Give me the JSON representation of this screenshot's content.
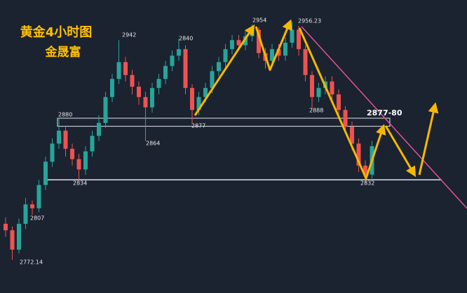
{
  "chart_data": {
    "type": "candlestick",
    "title": "黄金4小时图",
    "subtitle": "金晟富",
    "ylim": [
      2746.5,
      2973
    ],
    "up_color": "#26a69a",
    "down_color": "#ef5350",
    "open": [
      2800,
      2795,
      2780,
      2800,
      2815,
      2812,
      2830,
      2848,
      2862,
      2872,
      2858,
      2850,
      2842,
      2856,
      2868,
      2878,
      2898,
      2912,
      2925,
      2915,
      2906,
      2898,
      2890,
      2905,
      2912,
      2922,
      2930,
      2935,
      2905,
      2888,
      2898,
      2905,
      2918,
      2925,
      2935,
      2942,
      2938,
      2945,
      2950,
      2932,
      2926,
      2935,
      2930,
      2940,
      2950,
      2935,
      2915,
      2898,
      2905,
      2910,
      2900,
      2888,
      2875,
      2862,
      2845,
      2838
    ],
    "high": [
      2805,
      2798,
      2804,
      2820,
      2818,
      2834,
      2852,
      2866,
      2882,
      2876,
      2862,
      2854,
      2860,
      2872,
      2884,
      2902,
      2916,
      2942,
      2929,
      2919,
      2910,
      2902,
      2909,
      2916,
      2926,
      2934,
      2943,
      2938,
      2908,
      2902,
      2909,
      2922,
      2929,
      2939,
      2946,
      2946,
      2949,
      2954,
      2952,
      2936,
      2939,
      2939,
      2944,
      2956.23,
      2953,
      2938,
      2918,
      2909,
      2914,
      2914,
      2904,
      2891,
      2879,
      2866,
      2849,
      2864
    ],
    "low": [
      2790,
      2772.14,
      2777,
      2796,
      2807,
      2809,
      2826,
      2844,
      2858,
      2852,
      2845,
      2834,
      2838,
      2852,
      2864,
      2874,
      2894,
      2908,
      2910,
      2900,
      2892,
      2864,
      2886,
      2900,
      2908,
      2918,
      2926,
      2900,
      2877,
      2884,
      2894,
      2901,
      2914,
      2921,
      2931,
      2934,
      2934,
      2941,
      2928,
      2920,
      2922,
      2926,
      2926,
      2936,
      2930,
      2910,
      2888,
      2894,
      2900,
      2895,
      2883,
      2870,
      2857,
      2840,
      2832,
      2835
    ],
    "close": [
      2795,
      2780,
      2800,
      2815,
      2812,
      2830,
      2848,
      2862,
      2872,
      2858,
      2850,
      2842,
      2856,
      2868,
      2878,
      2898,
      2912,
      2925,
      2915,
      2906,
      2898,
      2890,
      2905,
      2912,
      2922,
      2930,
      2935,
      2905,
      2888,
      2898,
      2905,
      2918,
      2925,
      2935,
      2942,
      2938,
      2945,
      2950,
      2932,
      2926,
      2935,
      2930,
      2940,
      2950,
      2935,
      2915,
      2898,
      2905,
      2910,
      2900,
      2888,
      2875,
      2862,
      2845,
      2838,
      2860
    ],
    "price_labels": [
      2772.14,
      2807,
      2834,
      2880,
      2864,
      2942,
      2840,
      2877,
      2954,
      2956.23,
      2888,
      2832
    ],
    "support_level": 2834,
    "zone": {
      "label": "2877-80",
      "range": [
        2877,
        2880
      ]
    }
  }
}
